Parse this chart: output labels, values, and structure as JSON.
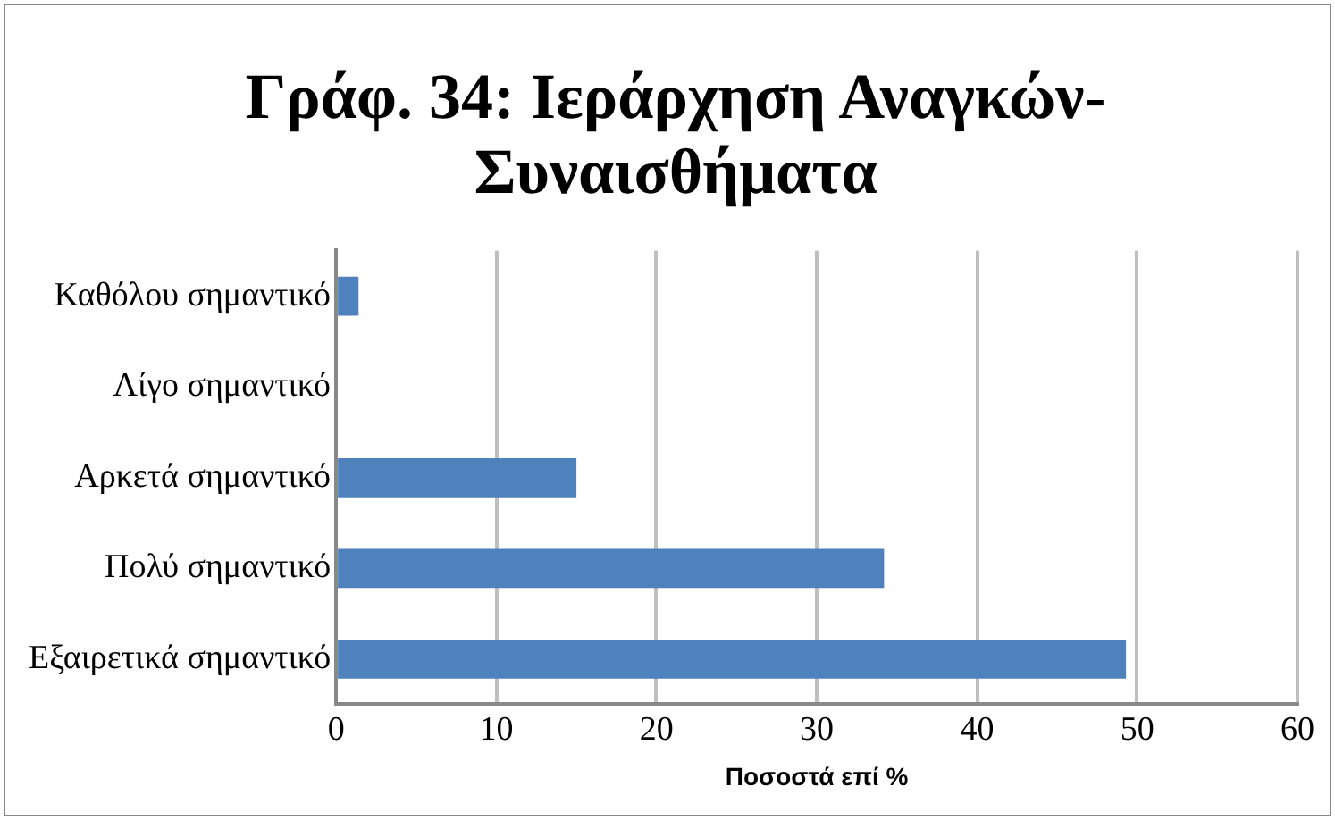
{
  "chart_data": {
    "type": "bar",
    "orientation": "horizontal",
    "title": "Γράφ. 34: Ιεράρχηση Αναγκών-Συναισθήματα",
    "xlabel": "Ποσοστά επί %",
    "categories": [
      "Καθόλου σημαντικό",
      "Λίγο σημαντικό",
      "Αρκετά σημαντικό",
      "Πολύ σημαντικό",
      "Εξαιρετικά σημαντικό"
    ],
    "values": [
      1.4,
      0,
      15,
      34.2,
      49.3
    ],
    "color": "#4f81bd",
    "xlim": [
      0,
      60
    ],
    "xticks": [
      0,
      10,
      20,
      30,
      40,
      50,
      60
    ],
    "grid": "x",
    "legend": false
  }
}
